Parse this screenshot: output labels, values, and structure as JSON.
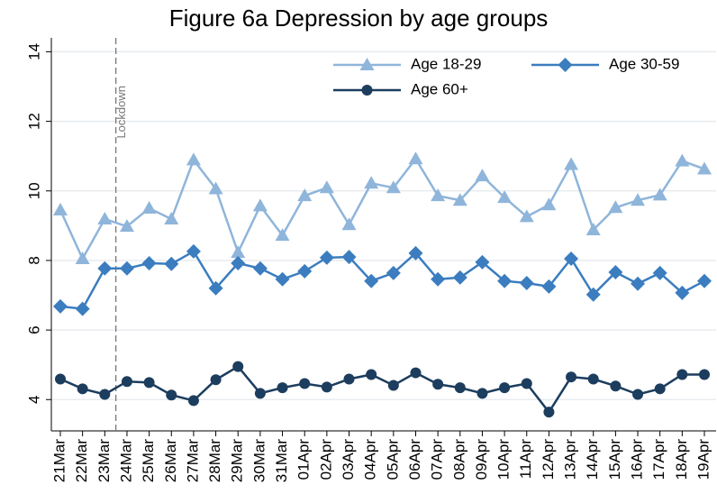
{
  "chart_data": {
    "type": "line",
    "title": "Figure 6a Depression by age groups",
    "categories": [
      "21Mar",
      "22Mar",
      "23Mar",
      "24Mar",
      "25Mar",
      "26Mar",
      "27Mar",
      "28Mar",
      "29Mar",
      "30Mar",
      "31Mar",
      "01Apr",
      "02Apr",
      "03Apr",
      "04Apr",
      "05Apr",
      "06Apr",
      "07Apr",
      "08Apr",
      "09Apr",
      "10Apr",
      "11Apr",
      "12Apr",
      "13Apr",
      "14Apr",
      "15Apr",
      "16Apr",
      "17Apr",
      "18Apr",
      "19Apr"
    ],
    "series": [
      {
        "name": "Age 18-29",
        "color": "#8fb5da",
        "marker": "triangle",
        "values": [
          9.45,
          8.05,
          9.19,
          8.98,
          9.5,
          9.19,
          10.89,
          10.06,
          8.23,
          9.57,
          8.72,
          9.86,
          10.09,
          9.03,
          10.22,
          10.09,
          10.92,
          9.86,
          9.73,
          10.43,
          9.81,
          9.26,
          9.6,
          10.76,
          8.88,
          9.52,
          9.73,
          9.88,
          10.86,
          10.63
        ]
      },
      {
        "name": "Age 30-59",
        "color": "#3b7dbf",
        "marker": "diamond",
        "values": [
          6.68,
          6.61,
          7.77,
          7.77,
          7.92,
          7.9,
          8.26,
          7.2,
          7.92,
          7.77,
          7.46,
          7.69,
          8.08,
          8.1,
          7.41,
          7.64,
          8.21,
          7.46,
          7.51,
          7.95,
          7.41,
          7.35,
          7.25,
          8.05,
          7.02,
          7.66,
          7.33,
          7.64,
          7.07,
          7.41
        ]
      },
      {
        "name": "Age 60+",
        "color": "#1c3d5e",
        "marker": "circle",
        "values": [
          4.59,
          4.31,
          4.15,
          4.52,
          4.49,
          4.13,
          3.97,
          4.57,
          4.95,
          4.18,
          4.34,
          4.46,
          4.36,
          4.59,
          4.72,
          4.41,
          4.77,
          4.44,
          4.34,
          4.18,
          4.34,
          4.46,
          3.64,
          4.65,
          4.59,
          4.39,
          4.15,
          4.31,
          4.72,
          4.72
        ]
      }
    ],
    "annotations": [
      {
        "text": "Lockdown"
      }
    ],
    "ylim": [
      3.1,
      14.4
    ],
    "yticks": [
      4,
      6,
      8,
      10,
      12,
      14
    ],
    "grid": true
  }
}
